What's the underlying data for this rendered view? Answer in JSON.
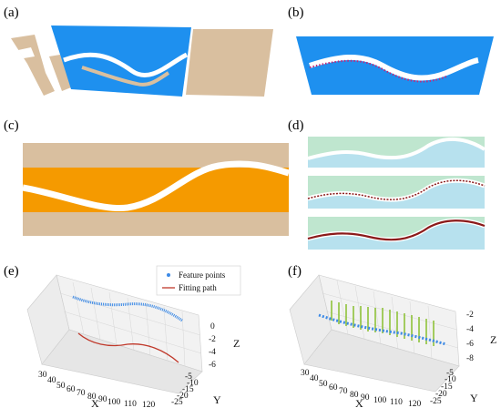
{
  "panels": {
    "a": {
      "label": "(a)"
    },
    "b": {
      "label": "(b)"
    },
    "c": {
      "label": "(c)"
    },
    "d": {
      "label": "(d)"
    },
    "e": {
      "label": "(e)"
    },
    "f": {
      "label": "(f)"
    }
  },
  "colors": {
    "blue": "#1e90ef",
    "tan": "#d9bf9f",
    "orange": "#f59a00",
    "mint": "#bfe6cf",
    "sky": "#b7e1ee",
    "dark_red": "#8b1a1a",
    "feature_blue": "#3c8ae6",
    "fit_red": "#c0392b",
    "green_vec": "#8fc23a"
  },
  "chart_data": [
    {
      "panel": "e",
      "type": "line",
      "series": [
        {
          "name": "Feature points",
          "marker": "dot"
        },
        {
          "name": "Fitting path",
          "marker": "line"
        }
      ],
      "x_ticks": [
        "30",
        "40",
        "50",
        "60",
        "70",
        "80",
        "90",
        "100",
        "110",
        "120"
      ],
      "y_ticks": [
        "-5",
        "-10",
        "-15",
        "-20",
        "-25"
      ],
      "z_ticks": [
        "0",
        "-2",
        "-4",
        "-6"
      ],
      "xlabel": "X",
      "ylabel": "Y",
      "zlabel": "Z"
    },
    {
      "panel": "f",
      "type": "line",
      "x_ticks": [
        "30",
        "40",
        "50",
        "60",
        "70",
        "80",
        "90",
        "100",
        "110",
        "120"
      ],
      "y_ticks": [
        "-5",
        "-10",
        "-15",
        "-20",
        "-25"
      ],
      "z_ticks": [
        "-2",
        "-4",
        "-6",
        "-8"
      ],
      "xlabel": "X",
      "ylabel": "Y",
      "zlabel": "Z"
    }
  ]
}
